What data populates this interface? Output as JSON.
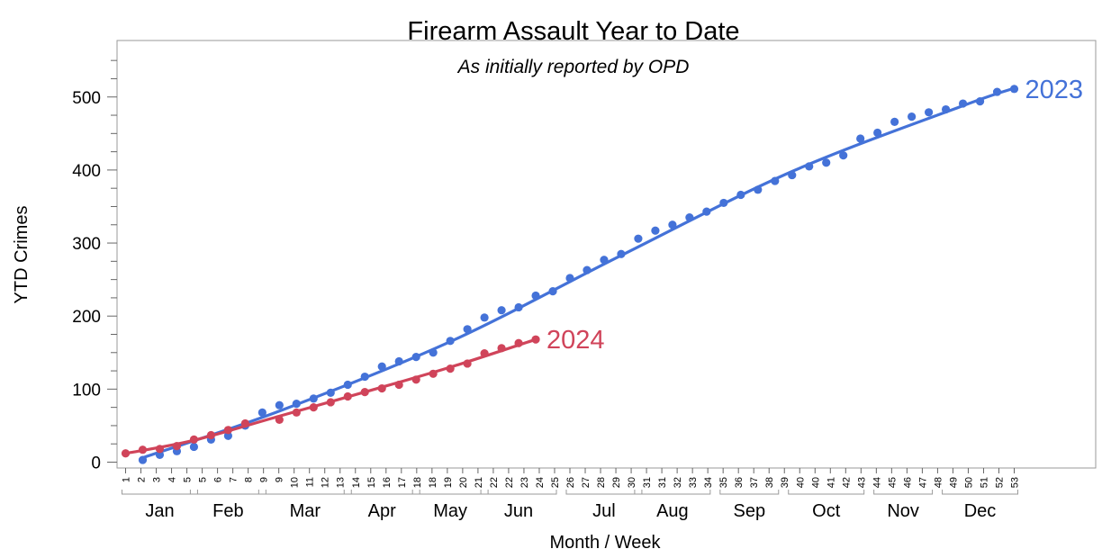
{
  "chart_data": {
    "type": "scatter",
    "title": "Firearm Assault Year to Date",
    "subtitle": "As initially reported by OPD",
    "xlabel": "Month / Week",
    "ylabel": "YTD Crimes",
    "ylim": [
      -5,
      565
    ],
    "yticks": [
      0,
      100,
      200,
      300,
      400,
      500
    ],
    "xlim": [
      1,
      53
    ],
    "week_ticks": [
      "1",
      "2",
      "3",
      "4",
      "5",
      "5",
      "6",
      "7",
      "8",
      "9",
      "9",
      "10",
      "11",
      "12",
      "13",
      "14",
      "15",
      "16",
      "17",
      "18",
      "18",
      "19",
      "20",
      "21",
      "22",
      "22",
      "23",
      "24",
      "25",
      "26",
      "27",
      "28",
      "29",
      "30",
      "31",
      "31",
      "32",
      "33",
      "34",
      "35",
      "36",
      "37",
      "38",
      "39",
      "40",
      "40",
      "41",
      "42",
      "43",
      "44",
      "45",
      "46",
      "47",
      "48",
      "49",
      "50",
      "51",
      "52",
      "53"
    ],
    "months": [
      {
        "label": "Jan",
        "start": 1,
        "end": 5
      },
      {
        "label": "Feb",
        "start": 5,
        "end": 9
      },
      {
        "label": "Mar",
        "start": 9,
        "end": 14
      },
      {
        "label": "Apr",
        "start": 14,
        "end": 18
      },
      {
        "label": "May",
        "start": 18,
        "end": 22
      },
      {
        "label": "Jun",
        "start": 22,
        "end": 26
      },
      {
        "label": "Jul",
        "start": 27,
        "end": 31
      },
      {
        "label": "Aug",
        "start": 31,
        "end": 35
      },
      {
        "label": "Sep",
        "start": 36,
        "end": 39
      },
      {
        "label": "Oct",
        "start": 40,
        "end": 44
      },
      {
        "label": "Nov",
        "start": 45,
        "end": 48
      },
      {
        "label": "Dec",
        "start": 49,
        "end": 53
      }
    ],
    "grid": false,
    "series": [
      {
        "name": "2023",
        "color": "#4472d8",
        "points": [
          [
            2,
            3
          ],
          [
            3,
            10
          ],
          [
            4,
            15
          ],
          [
            5,
            21
          ],
          [
            6,
            31
          ],
          [
            7,
            36
          ],
          [
            8,
            50
          ],
          [
            9,
            68
          ],
          [
            10,
            78
          ],
          [
            11,
            80
          ],
          [
            12,
            87
          ],
          [
            13,
            95
          ],
          [
            14,
            106
          ],
          [
            15,
            117
          ],
          [
            16,
            131
          ],
          [
            17,
            138
          ],
          [
            18,
            144
          ],
          [
            19,
            150
          ],
          [
            20,
            166
          ],
          [
            21,
            182
          ],
          [
            22,
            198
          ],
          [
            23,
            208
          ],
          [
            24,
            212
          ],
          [
            25,
            228
          ],
          [
            26,
            234
          ],
          [
            27,
            252
          ],
          [
            28,
            263
          ],
          [
            29,
            277
          ],
          [
            30,
            285
          ],
          [
            31,
            306
          ],
          [
            32,
            317
          ],
          [
            33,
            325
          ],
          [
            34,
            335
          ],
          [
            35,
            343
          ],
          [
            36,
            355
          ],
          [
            37,
            366
          ],
          [
            38,
            373
          ],
          [
            39,
            385
          ],
          [
            40,
            393
          ],
          [
            41,
            405
          ],
          [
            42,
            410
          ],
          [
            43,
            420
          ],
          [
            44,
            443
          ],
          [
            45,
            451
          ],
          [
            46,
            466
          ],
          [
            47,
            473
          ],
          [
            48,
            479
          ],
          [
            49,
            483
          ],
          [
            50,
            491
          ],
          [
            51,
            494
          ],
          [
            52,
            507
          ],
          [
            53,
            511
          ]
        ],
        "trend": [
          [
            2,
            6
          ],
          [
            10,
            70
          ],
          [
            20,
            165
          ],
          [
            30,
            283
          ],
          [
            40,
            398
          ],
          [
            50,
            488
          ],
          [
            53,
            512
          ]
        ]
      },
      {
        "name": "2024",
        "color": "#d0445a",
        "points": [
          [
            1,
            12
          ],
          [
            2,
            17
          ],
          [
            3,
            18
          ],
          [
            4,
            22
          ],
          [
            5,
            31
          ],
          [
            6,
            37
          ],
          [
            7,
            44
          ],
          [
            8,
            53
          ],
          [
            10,
            58
          ],
          [
            11,
            68
          ],
          [
            12,
            75
          ],
          [
            13,
            82
          ],
          [
            14,
            90
          ],
          [
            15,
            96
          ],
          [
            16,
            101
          ],
          [
            17,
            106
          ],
          [
            18,
            113
          ],
          [
            19,
            121
          ],
          [
            20,
            128
          ],
          [
            21,
            135
          ],
          [
            22,
            149
          ],
          [
            23,
            156
          ],
          [
            24,
            163
          ],
          [
            25,
            168
          ]
        ],
        "trend": [
          [
            1,
            12
          ],
          [
            5,
            30
          ],
          [
            10,
            63
          ],
          [
            15,
            96
          ],
          [
            20,
            130
          ],
          [
            25,
            168
          ]
        ]
      }
    ]
  }
}
